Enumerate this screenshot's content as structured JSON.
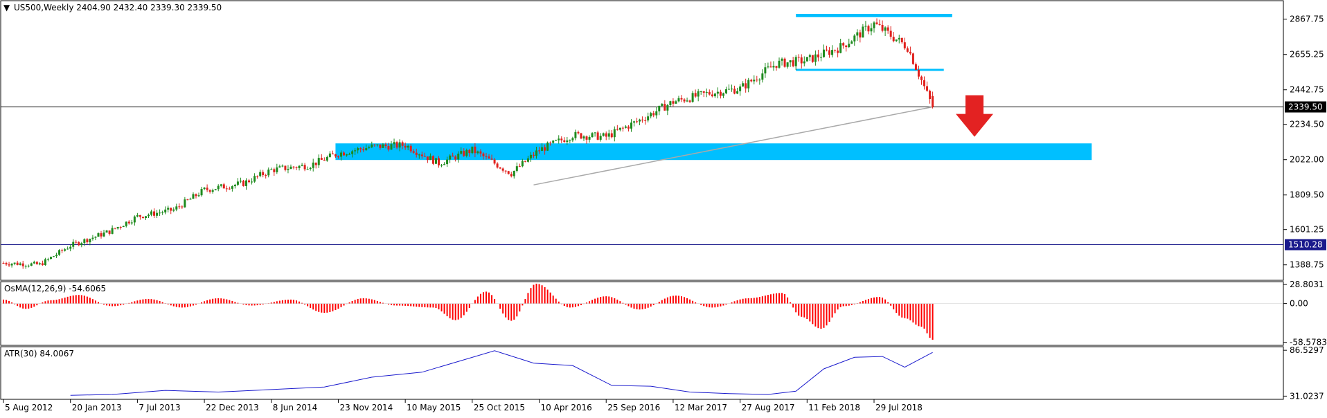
{
  "symbol_header": "US500,Weekly  2404.90 2432.40 2339.30 2339.50",
  "colors": {
    "background": "#ffffff",
    "panel_bg": "#f2f6fa",
    "axis": "#000000",
    "bull_candle": "#1d8a1d",
    "bear_candle": "#e0201c",
    "zone": "#00bfff",
    "trend_line": "#a9a9a9",
    "current_price_line": "#000000",
    "support_line": "#1a1a8c",
    "osma_bar": "#ff0000",
    "atr_line": "#1a1acd",
    "arrow": "#e32222"
  },
  "chart_data": [
    {
      "type": "candlestick",
      "panel": "price",
      "x": [
        "2012-08-05",
        "2012-11-04",
        "2013-01-20",
        "2013-04-28",
        "2013-07-07",
        "2013-10-06",
        "2013-12-22",
        "2014-03-30",
        "2014-06-08",
        "2014-09-14",
        "2014-11-23",
        "2015-02-15",
        "2015-05-10",
        "2015-08-02",
        "2015-10-25",
        "2016-01-31",
        "2016-04-10",
        "2016-07-03",
        "2016-09-25",
        "2016-12-18",
        "2017-03-12",
        "2017-06-04",
        "2017-08-27",
        "2017-11-26",
        "2018-02-11",
        "2018-05-06",
        "2018-07-29",
        "2018-10-21",
        "2018-12-23"
      ],
      "close": [
        1400,
        1390,
        1505,
        1590,
        1680,
        1720,
        1840,
        1880,
        1960,
        1990,
        2060,
        2100,
        2110,
        2000,
        2080,
        1940,
        2080,
        2170,
        2160,
        2260,
        2370,
        2420,
        2450,
        2600,
        2620,
        2700,
        2840,
        2700,
        2339.5
      ],
      "current_bar": {
        "open": 2404.9,
        "high": 2432.4,
        "low": 2339.3,
        "close": 2339.5
      },
      "y_ticks": [
        "2867.75",
        "2655.25",
        "2442.75",
        "2234.50",
        "2022.00",
        "1809.50",
        "1601.25",
        "1388.75"
      ],
      "ylim": [
        1300,
        2975
      ],
      "price_labels": {
        "current": "2339.50",
        "support": "1510.28"
      },
      "zones": [
        {
          "name": "top-resistance",
          "x": [
            "2018-01-14",
            "2019-02-10"
          ],
          "y": [
            2880,
            2900
          ]
        },
        {
          "name": "range-support",
          "x": [
            "2018-01-14",
            "2019-01-20"
          ],
          "y": [
            2557,
            2569
          ]
        },
        {
          "name": "demand-zone",
          "x": [
            "2014-11-16",
            "2020-01-26"
          ],
          "y": [
            2020,
            2120
          ]
        }
      ],
      "trend_line": {
        "x": [
          "2016-03-27",
          "2018-12-23"
        ],
        "y": [
          1870,
          2339.5
        ]
      },
      "arrow": {
        "x": "2019-04-07",
        "from": 2410,
        "to": 2160,
        "direction": "down"
      }
    },
    {
      "type": "bar",
      "panel": "osma",
      "label": "OsMA(12,26,9) -54.6065",
      "x": [
        "2012-08-05",
        "2012-09-30",
        "2012-12-02",
        "2013-02-10",
        "2013-05-05",
        "2013-08-04",
        "2013-10-27",
        "2014-01-26",
        "2014-04-20",
        "2014-07-27",
        "2014-10-19",
        "2015-01-25",
        "2015-04-19",
        "2015-07-19",
        "2015-09-13",
        "2015-11-29",
        "2016-01-31",
        "2016-04-03",
        "2016-06-26",
        "2016-09-25",
        "2016-12-18",
        "2017-03-19",
        "2017-06-18",
        "2017-09-17",
        "2017-12-10",
        "2018-01-28",
        "2018-03-18",
        "2018-05-13",
        "2018-08-12",
        "2018-10-14",
        "2018-11-25",
        "2018-12-23"
      ],
      "values": [
        6,
        -8,
        5,
        13,
        -4,
        7,
        -6,
        8,
        -3,
        6,
        -14,
        8,
        -3,
        -6,
        -25,
        18,
        -26,
        30,
        -6,
        11,
        -9,
        12,
        -6,
        8,
        16,
        -20,
        -38,
        -4,
        10,
        -22,
        -35,
        -54.6065
      ],
      "y_ticks": [
        "28.8031",
        "0.00",
        "-58.5783"
      ],
      "ylim": [
        -62,
        32
      ]
    },
    {
      "type": "line",
      "panel": "atr",
      "label": "ATR(30) 84.0067",
      "x": [
        "2013-01-20",
        "2013-05-05",
        "2013-09-15",
        "2014-01-26",
        "2014-06-08",
        "2014-10-19",
        "2015-02-15",
        "2015-06-21",
        "2015-09-27",
        "2015-12-20",
        "2016-03-27",
        "2016-07-03",
        "2016-10-09",
        "2017-01-15",
        "2017-04-23",
        "2017-07-30",
        "2017-11-05",
        "2018-01-14",
        "2018-03-25",
        "2018-06-10",
        "2018-08-19",
        "2018-10-14",
        "2018-12-23"
      ],
      "values": [
        32,
        33,
        38,
        36,
        39,
        42,
        54,
        60,
        74,
        86,
        71,
        68,
        44,
        43,
        36,
        34,
        33,
        37,
        64,
        78,
        79,
        66,
        84.0067
      ],
      "y_ticks": [
        "86.5297",
        "31.0237"
      ],
      "ylim": [
        28,
        90
      ]
    }
  ],
  "x_axis_labels": [
    "5 Aug 2012",
    "20 Jan 2013",
    "7 Jul 2013",
    "22 Dec 2013",
    "8 Jun 2014",
    "23 Nov 2014",
    "10 May 2015",
    "25 Oct 2015",
    "10 Apr 2016",
    "25 Sep 2016",
    "12 Mar 2017",
    "27 Aug 2017",
    "11 Feb 2018",
    "29 Jul 2018"
  ]
}
